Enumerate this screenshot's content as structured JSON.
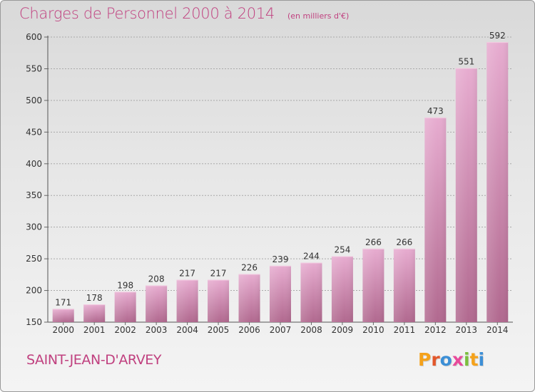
{
  "header": {
    "title": "Charges de Personnel 2000 à 2014",
    "unit": "(en milliers d'€)"
  },
  "footer": {
    "commune": "SAINT-JEAN-D'ARVEY",
    "logo": "Proxiti",
    "logo_colors": [
      "#f5a21b",
      "#e2572b",
      "#3c8fd6",
      "#e84a9b",
      "#7bbf3d",
      "#f5a21b",
      "#3c8fd6"
    ]
  },
  "colors": {
    "accent": "#c0407f",
    "bar_light": "#e7acd0",
    "bar_dark": "#b1698f",
    "grid": "#a8a8a8"
  },
  "chart_data": {
    "type": "bar",
    "title": "Charges de Personnel 2000 à 2014",
    "subtitle": "(en milliers d'€)",
    "categories": [
      "2000",
      "2001",
      "2002",
      "2003",
      "2004",
      "2005",
      "2006",
      "2007",
      "2008",
      "2009",
      "2010",
      "2011",
      "2012",
      "2013",
      "2014"
    ],
    "values": [
      171,
      178,
      198,
      208,
      217,
      217,
      226,
      239,
      244,
      254,
      266,
      266,
      473,
      551,
      592
    ],
    "ylim": [
      150,
      600
    ],
    "yticks": [
      150,
      200,
      250,
      300,
      350,
      400,
      450,
      500,
      550,
      600
    ],
    "grid": true,
    "data_labels": true
  }
}
